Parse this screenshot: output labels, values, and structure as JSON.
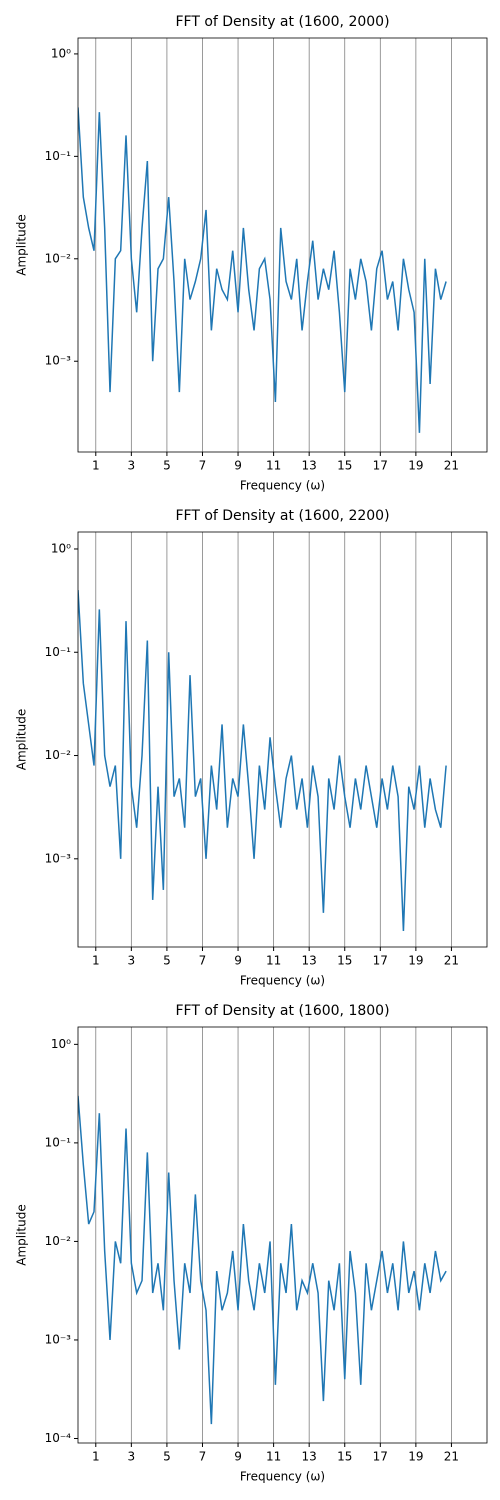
{
  "chart_data": [
    {
      "type": "line",
      "title": "FFT of Density at (1600, 2000)",
      "xlabel": "Frequency (ω)",
      "ylabel": "Amplitude",
      "log_y": true,
      "grid": "x",
      "xlim": [
        0,
        23
      ],
      "ylim": [
        0.00013,
        1.43
      ],
      "xticks": [
        1,
        3,
        5,
        7,
        9,
        11,
        13,
        15,
        17,
        19,
        21
      ],
      "yticks": [
        {
          "value": 0.001,
          "label": "10⁻³"
        },
        {
          "value": 0.01,
          "label": "10⁻²"
        },
        {
          "value": 0.1,
          "label": "10⁻¹"
        },
        {
          "value": 1,
          "label": "10⁰"
        }
      ],
      "x": [
        0,
        0.3,
        0.6,
        0.9,
        1.2,
        1.5,
        1.8,
        2.1,
        2.4,
        2.7,
        3,
        3.3,
        3.6,
        3.9,
        4.2,
        4.5,
        4.8,
        5.1,
        5.4,
        5.7,
        6,
        6.3,
        6.6,
        6.9,
        7.2,
        7.5,
        7.8,
        8.1,
        8.4,
        8.7,
        9,
        9.3,
        9.6,
        9.9,
        10.2,
        10.5,
        10.8,
        11.1,
        11.4,
        11.7,
        12,
        12.3,
        12.6,
        12.9,
        13.2,
        13.5,
        13.8,
        14.1,
        14.4,
        14.7,
        15,
        15.3,
        15.6,
        15.9,
        16.2,
        16.5,
        16.8,
        17.1,
        17.4,
        17.7,
        18,
        18.3,
        18.6,
        18.9,
        19.2,
        19.5,
        19.8,
        20.1,
        20.4,
        20.7
      ],
      "series": [
        {
          "color": "#1f77b4",
          "values": [
            0.3,
            0.04,
            0.02,
            0.012,
            0.27,
            0.02,
            0.0005,
            0.01,
            0.012,
            0.16,
            0.01,
            0.003,
            0.02,
            0.09,
            0.001,
            0.008,
            0.01,
            0.04,
            0.006,
            0.0005,
            0.01,
            0.004,
            0.006,
            0.01,
            0.03,
            0.002,
            0.008,
            0.005,
            0.004,
            0.012,
            0.003,
            0.02,
            0.005,
            0.002,
            0.008,
            0.01,
            0.004,
            0.0004,
            0.02,
            0.006,
            0.004,
            0.01,
            0.002,
            0.006,
            0.015,
            0.004,
            0.008,
            0.005,
            0.012,
            0.003,
            0.0005,
            0.008,
            0.004,
            0.01,
            0.006,
            0.002,
            0.008,
            0.012,
            0.004,
            0.006,
            0.002,
            0.01,
            0.005,
            0.003,
            0.0002,
            0.01,
            0.0006,
            0.008,
            0.004,
            0.006
          ]
        }
      ]
    },
    {
      "type": "line",
      "title": "FFT of Density at (1600, 2200)",
      "xlabel": "Frequency (ω)",
      "ylabel": "Amplitude",
      "log_y": true,
      "grid": "x",
      "xlim": [
        0,
        23
      ],
      "ylim": [
        0.00014,
        1.46
      ],
      "xticks": [
        1,
        3,
        5,
        7,
        9,
        11,
        13,
        15,
        17,
        19,
        21
      ],
      "yticks": [
        {
          "value": 0.001,
          "label": "10⁻³"
        },
        {
          "value": 0.01,
          "label": "10⁻²"
        },
        {
          "value": 0.1,
          "label": "10⁻¹"
        },
        {
          "value": 1,
          "label": "10⁰"
        }
      ],
      "x": [
        0,
        0.3,
        0.6,
        0.9,
        1.2,
        1.5,
        1.8,
        2.1,
        2.4,
        2.7,
        3,
        3.3,
        3.6,
        3.9,
        4.2,
        4.5,
        4.8,
        5.1,
        5.4,
        5.7,
        6,
        6.3,
        6.6,
        6.9,
        7.2,
        7.5,
        7.8,
        8.1,
        8.4,
        8.7,
        9,
        9.3,
        9.6,
        9.9,
        10.2,
        10.5,
        10.8,
        11.1,
        11.4,
        11.7,
        12,
        12.3,
        12.6,
        12.9,
        13.2,
        13.5,
        13.8,
        14.1,
        14.4,
        14.7,
        15,
        15.3,
        15.6,
        15.9,
        16.2,
        16.5,
        16.8,
        17.1,
        17.4,
        17.7,
        18,
        18.3,
        18.6,
        18.9,
        19.2,
        19.5,
        19.8,
        20.1,
        20.4,
        20.7
      ],
      "series": [
        {
          "color": "#1f77b4",
          "values": [
            0.4,
            0.05,
            0.02,
            0.008,
            0.26,
            0.01,
            0.005,
            0.008,
            0.001,
            0.2,
            0.005,
            0.002,
            0.01,
            0.13,
            0.0004,
            0.005,
            0.0005,
            0.1,
            0.004,
            0.006,
            0.002,
            0.06,
            0.004,
            0.006,
            0.001,
            0.008,
            0.003,
            0.02,
            0.002,
            0.006,
            0.004,
            0.02,
            0.005,
            0.001,
            0.008,
            0.003,
            0.015,
            0.005,
            0.002,
            0.006,
            0.01,
            0.003,
            0.006,
            0.002,
            0.008,
            0.004,
            0.0003,
            0.006,
            0.003,
            0.01,
            0.004,
            0.002,
            0.006,
            0.003,
            0.008,
            0.004,
            0.002,
            0.006,
            0.003,
            0.008,
            0.004,
            0.0002,
            0.005,
            0.003,
            0.008,
            0.002,
            0.006,
            0.003,
            0.002,
            0.008
          ]
        }
      ]
    },
    {
      "type": "line",
      "title": "FFT of Density at (1600, 1800)",
      "xlabel": "Frequency (ω)",
      "ylabel": "Amplitude",
      "log_y": true,
      "grid": "x",
      "xlim": [
        0,
        23
      ],
      "ylim": [
        9e-05,
        1.5
      ],
      "xticks": [
        1,
        3,
        5,
        7,
        9,
        11,
        13,
        15,
        17,
        19,
        21
      ],
      "yticks": [
        {
          "value": 0.0001,
          "label": "10⁻⁴"
        },
        {
          "value": 0.001,
          "label": "10⁻³"
        },
        {
          "value": 0.01,
          "label": "10⁻²"
        },
        {
          "value": 0.1,
          "label": "10⁻¹"
        },
        {
          "value": 1,
          "label": "10⁰"
        }
      ],
      "x": [
        0,
        0.3,
        0.6,
        0.9,
        1.2,
        1.5,
        1.8,
        2.1,
        2.4,
        2.7,
        3,
        3.3,
        3.6,
        3.9,
        4.2,
        4.5,
        4.8,
        5.1,
        5.4,
        5.7,
        6,
        6.3,
        6.6,
        6.9,
        7.2,
        7.5,
        7.8,
        8.1,
        8.4,
        8.7,
        9,
        9.3,
        9.6,
        9.9,
        10.2,
        10.5,
        10.8,
        11.1,
        11.4,
        11.7,
        12,
        12.3,
        12.6,
        12.9,
        13.2,
        13.5,
        13.8,
        14.1,
        14.4,
        14.7,
        15,
        15.3,
        15.6,
        15.9,
        16.2,
        16.5,
        16.8,
        17.1,
        17.4,
        17.7,
        18,
        18.3,
        18.6,
        18.9,
        19.2,
        19.5,
        19.8,
        20.1,
        20.4,
        20.7
      ],
      "series": [
        {
          "color": "#1f77b4",
          "values": [
            0.3,
            0.06,
            0.015,
            0.02,
            0.2,
            0.008,
            0.001,
            0.01,
            0.006,
            0.14,
            0.006,
            0.003,
            0.004,
            0.08,
            0.003,
            0.006,
            0.002,
            0.05,
            0.004,
            0.0008,
            0.006,
            0.003,
            0.03,
            0.004,
            0.002,
            0.00014,
            0.005,
            0.002,
            0.003,
            0.008,
            0.002,
            0.015,
            0.004,
            0.002,
            0.006,
            0.003,
            0.01,
            0.00035,
            0.006,
            0.003,
            0.015,
            0.002,
            0.004,
            0.003,
            0.006,
            0.003,
            0.00024,
            0.004,
            0.002,
            0.006,
            0.0004,
            0.008,
            0.003,
            0.00035,
            0.006,
            0.002,
            0.004,
            0.008,
            0.003,
            0.006,
            0.002,
            0.01,
            0.003,
            0.005,
            0.002,
            0.006,
            0.003,
            0.008,
            0.004,
            0.005
          ]
        }
      ]
    }
  ]
}
